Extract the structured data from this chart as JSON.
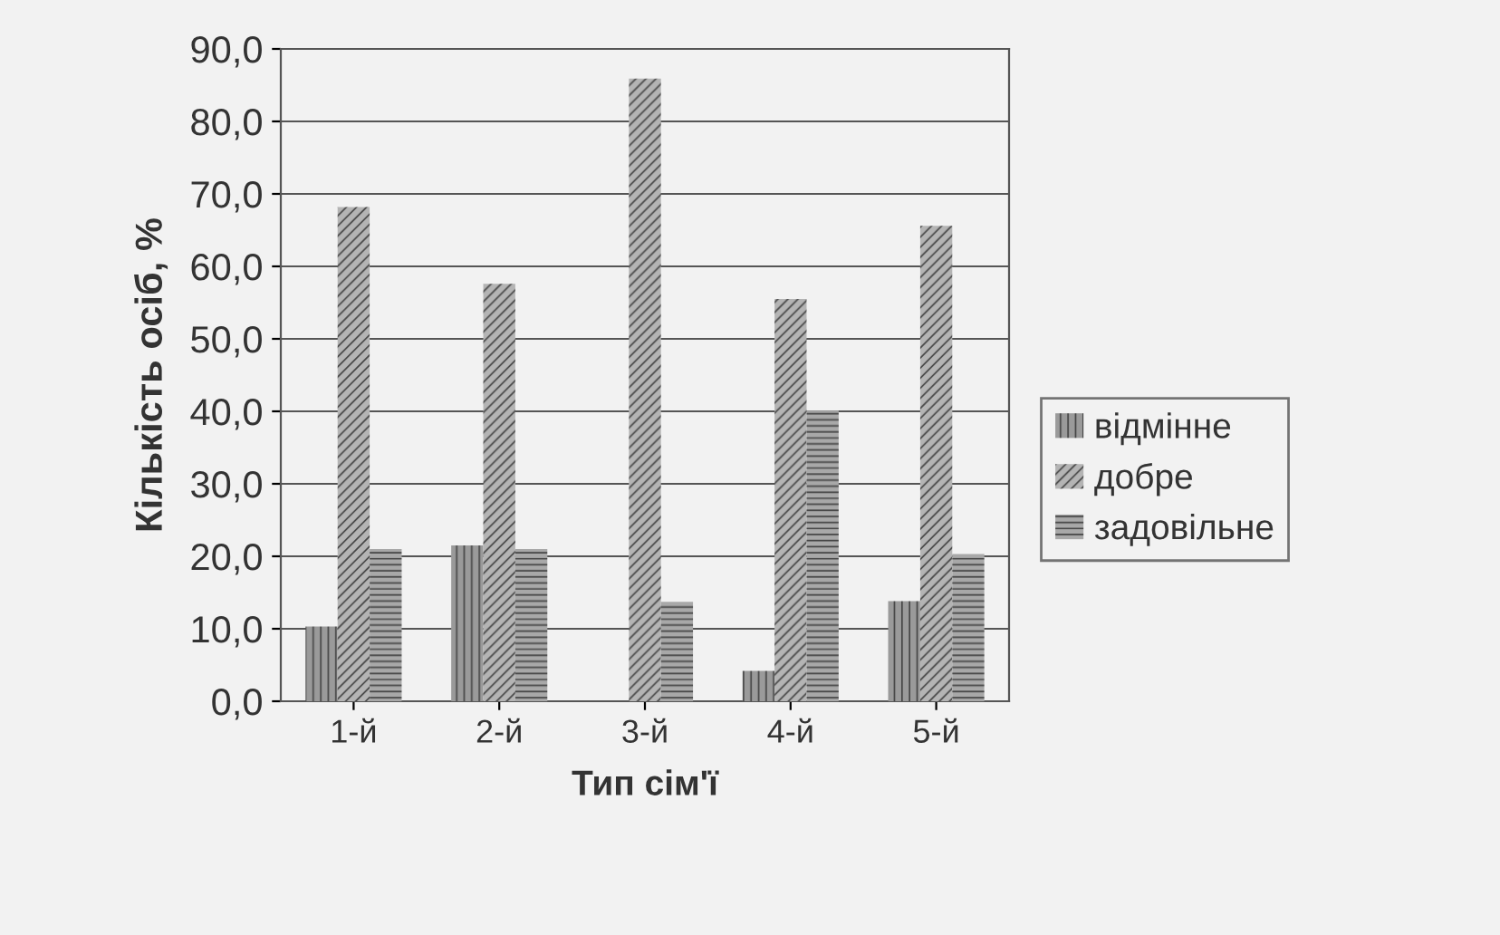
{
  "chart_data": {
    "type": "bar",
    "xlabel": "Тип сім'ї",
    "ylabel": "Кількість осіб, %",
    "categories": [
      "1-й",
      "2-й",
      "3-й",
      "4-й",
      "5-й"
    ],
    "series": [
      {
        "name": "відмінне",
        "color": "#9a9a9a",
        "values": [
          10.3,
          21.5,
          0,
          4.2,
          13.8
        ]
      },
      {
        "name": "добре",
        "color": "#b4b4b4",
        "values": [
          68.2,
          57.6,
          85.9,
          55.5,
          65.6
        ]
      },
      {
        "name": "задовільне",
        "color": "#a8a8a8",
        "values": [
          21.0,
          21.0,
          13.7,
          40.1,
          20.3
        ]
      }
    ],
    "ylim": [
      0,
      90
    ],
    "yticks": [
      {
        "value": 0,
        "label": "0,0"
      },
      {
        "value": 10,
        "label": "10,0"
      },
      {
        "value": 20,
        "label": "20,0"
      },
      {
        "value": 30,
        "label": "30,0"
      },
      {
        "value": 40,
        "label": "40,0"
      },
      {
        "value": 50,
        "label": "50,0"
      },
      {
        "value": 60,
        "label": "60,0"
      },
      {
        "value": 70,
        "label": "70,0"
      },
      {
        "value": 80,
        "label": "80,0"
      },
      {
        "value": 90,
        "label": "90,0"
      }
    ],
    "grid": "y",
    "legend": "right"
  }
}
